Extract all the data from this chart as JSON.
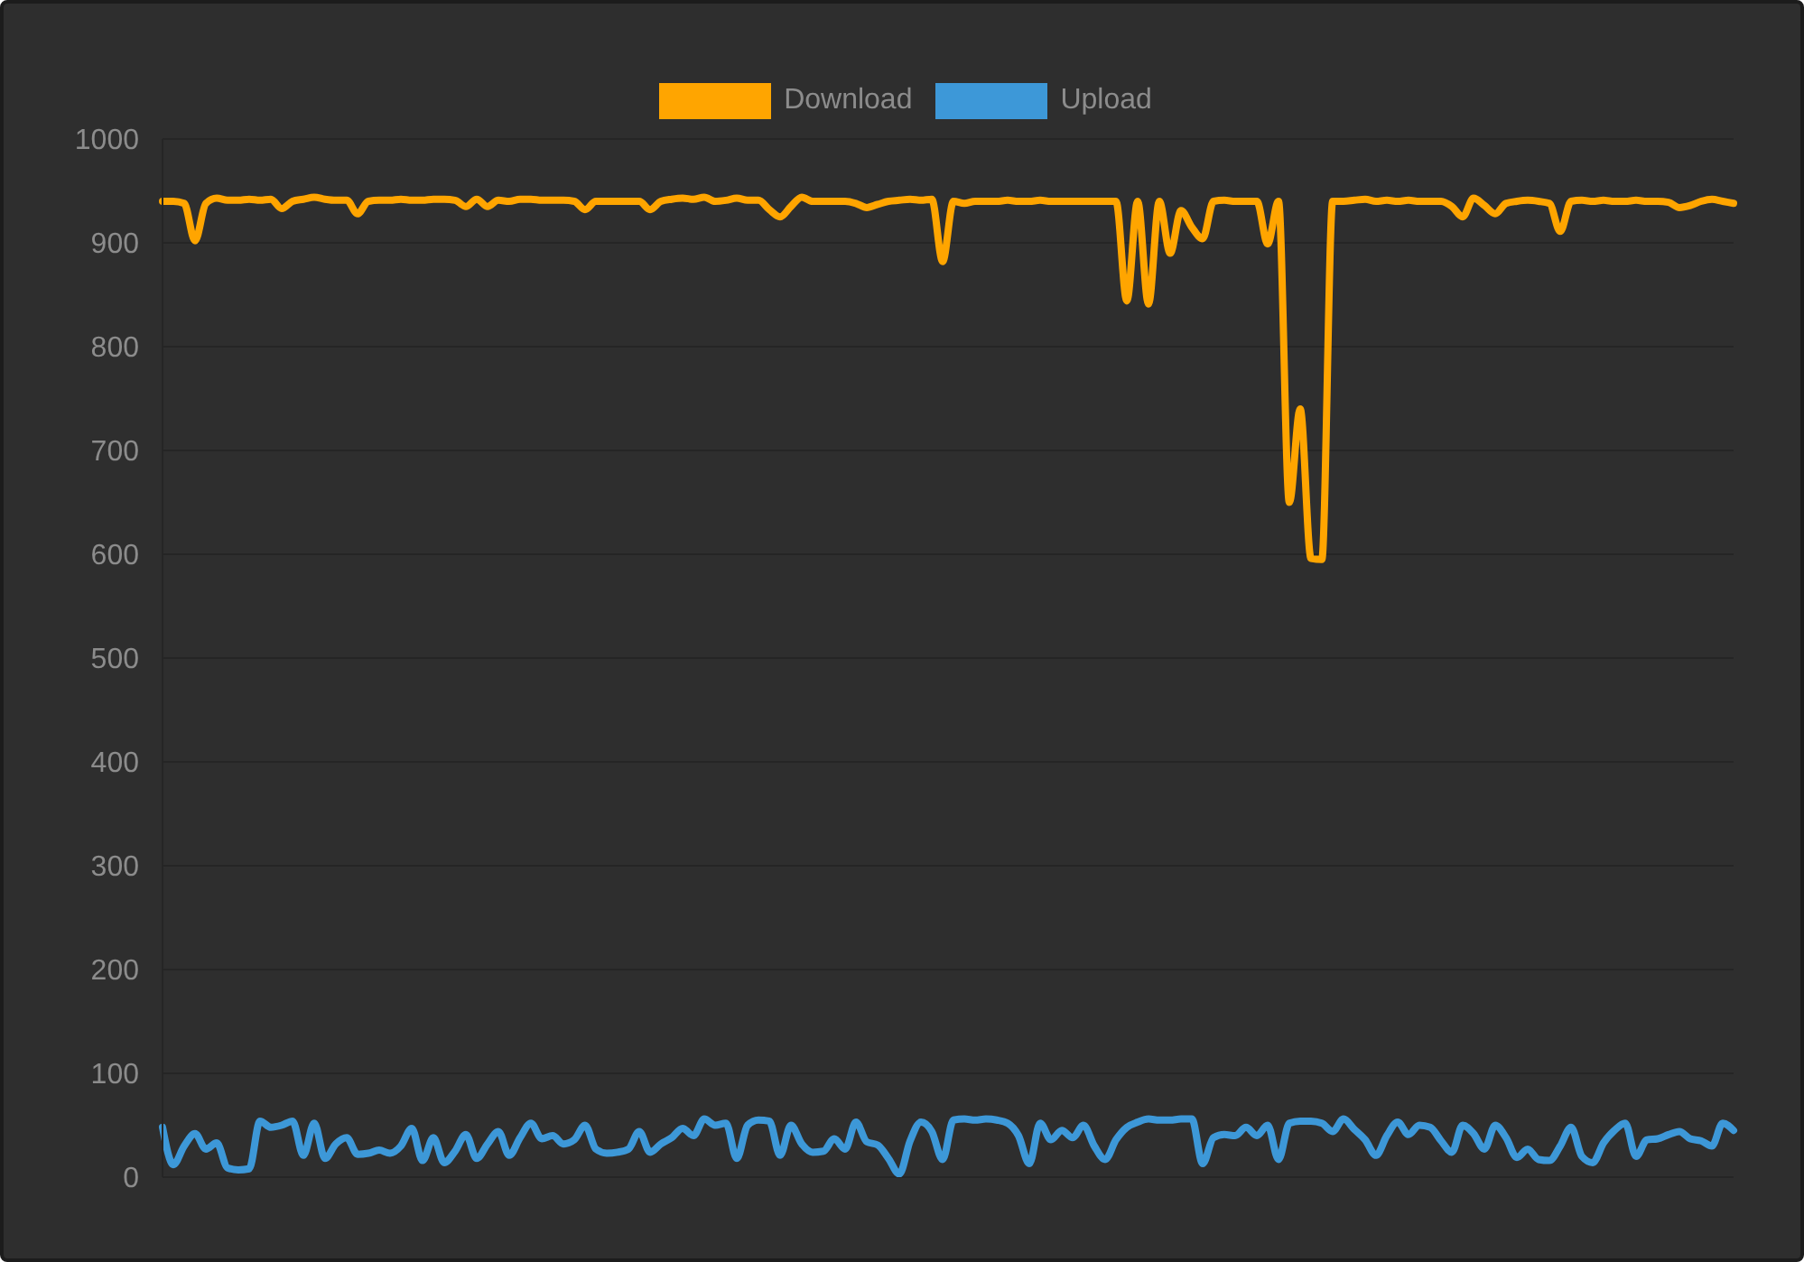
{
  "chart_data": {
    "type": "line",
    "categories": [
      null,
      null,
      null,
      null,
      null,
      null,
      null,
      null,
      null,
      null,
      null,
      null,
      null,
      null,
      null,
      null,
      null,
      null,
      null,
      null,
      null,
      null,
      null,
      null,
      null,
      null,
      null,
      null,
      null,
      null,
      null,
      null,
      null,
      null,
      null,
      null,
      null,
      null,
      null,
      null,
      null,
      null,
      null,
      null,
      null,
      null,
      null,
      null,
      null,
      null,
      null,
      null,
      null,
      null,
      null,
      null,
      null,
      null,
      null,
      null,
      null,
      null,
      null,
      null,
      null,
      null,
      null,
      null,
      null,
      null,
      null,
      null,
      null,
      null,
      null,
      null,
      null,
      null,
      null,
      null,
      null,
      null,
      null,
      null,
      null,
      null,
      null,
      null,
      null,
      null,
      null,
      null,
      null,
      null,
      null,
      null,
      null,
      null,
      null,
      null,
      null,
      null,
      null,
      null,
      null,
      null,
      null,
      null,
      null,
      null,
      null,
      null,
      null,
      null,
      null,
      null,
      null,
      null,
      null,
      null,
      null,
      null,
      null,
      null,
      null,
      null,
      null,
      null,
      null,
      null,
      null,
      null,
      null,
      null,
      null,
      null,
      null,
      null,
      null,
      null,
      null,
      null,
      null,
      null,
      null,
      null
    ],
    "series": [
      {
        "name": "Download",
        "color": "#ffa500",
        "values": [
          940,
          940,
          938,
          902,
          938,
          943,
          941,
          941,
          942,
          941,
          942,
          933,
          940,
          942,
          944,
          942,
          941,
          941,
          928,
          940,
          941,
          941,
          942,
          941,
          941,
          942,
          942,
          941,
          935,
          942,
          935,
          941,
          940,
          942,
          942,
          941,
          941,
          941,
          940,
          932,
          940,
          940,
          940,
          940,
          940,
          932,
          940,
          942,
          943,
          942,
          944,
          940,
          941,
          943,
          941,
          941,
          932,
          925,
          935,
          944,
          940,
          940,
          940,
          940,
          938,
          934,
          937,
          940,
          941,
          942,
          941,
          942,
          882,
          940,
          938,
          940,
          940,
          940,
          941,
          940,
          940,
          941,
          940,
          940,
          940,
          940,
          940,
          940,
          940,
          844,
          940,
          841,
          940,
          890,
          931,
          915,
          904,
          940,
          941,
          940,
          940,
          940,
          899,
          940,
          650,
          740,
          596,
          595,
          940,
          940,
          941,
          942,
          940,
          941,
          940,
          941,
          940,
          940,
          940,
          935,
          925,
          943,
          936,
          928,
          938,
          940,
          941,
          940,
          938,
          911,
          940,
          941,
          940,
          941,
          940,
          940,
          941,
          940,
          940,
          939,
          934,
          936,
          940,
          942,
          940,
          938
        ]
      },
      {
        "name": "Upload",
        "color": "#3d98d8",
        "values": [
          48,
          12,
          30,
          42,
          27,
          33,
          9,
          7,
          8,
          54,
          48,
          50,
          54,
          21,
          52,
          18,
          32,
          38,
          22,
          23,
          26,
          23,
          30,
          47,
          16,
          38,
          14,
          25,
          41,
          18,
          32,
          44,
          21,
          38,
          52,
          37,
          40,
          32,
          36,
          50,
          27,
          23,
          24,
          27,
          44,
          24,
          32,
          38,
          47,
          40,
          56,
          50,
          52,
          18,
          50,
          55,
          54,
          21,
          50,
          32,
          24,
          25,
          37,
          27,
          53,
          34,
          31,
          18,
          3,
          35,
          53,
          44,
          17,
          55,
          56,
          55,
          56,
          55,
          52,
          40,
          13,
          52,
          36,
          45,
          38,
          50,
          30,
          17,
          36,
          48,
          53,
          56,
          55,
          55,
          56,
          56,
          13,
          38,
          41,
          40,
          48,
          40,
          50,
          17,
          52,
          54,
          54,
          52,
          44,
          56,
          46,
          36,
          21,
          40,
          53,
          41,
          50,
          48,
          35,
          24,
          50,
          42,
          27,
          50,
          38,
          19,
          27,
          17,
          16,
          30,
          48,
          20,
          14,
          33,
          45,
          52,
          20,
          36,
          37,
          41,
          44,
          37,
          35,
          30,
          52,
          45
        ]
      }
    ],
    "ylim": [
      0,
      1000
    ],
    "yticks": [
      0,
      100,
      200,
      300,
      400,
      500,
      600,
      700,
      800,
      900,
      1000
    ],
    "grid": "y",
    "legend": "top",
    "tick_labels": "y",
    "line_style": "solid"
  }
}
